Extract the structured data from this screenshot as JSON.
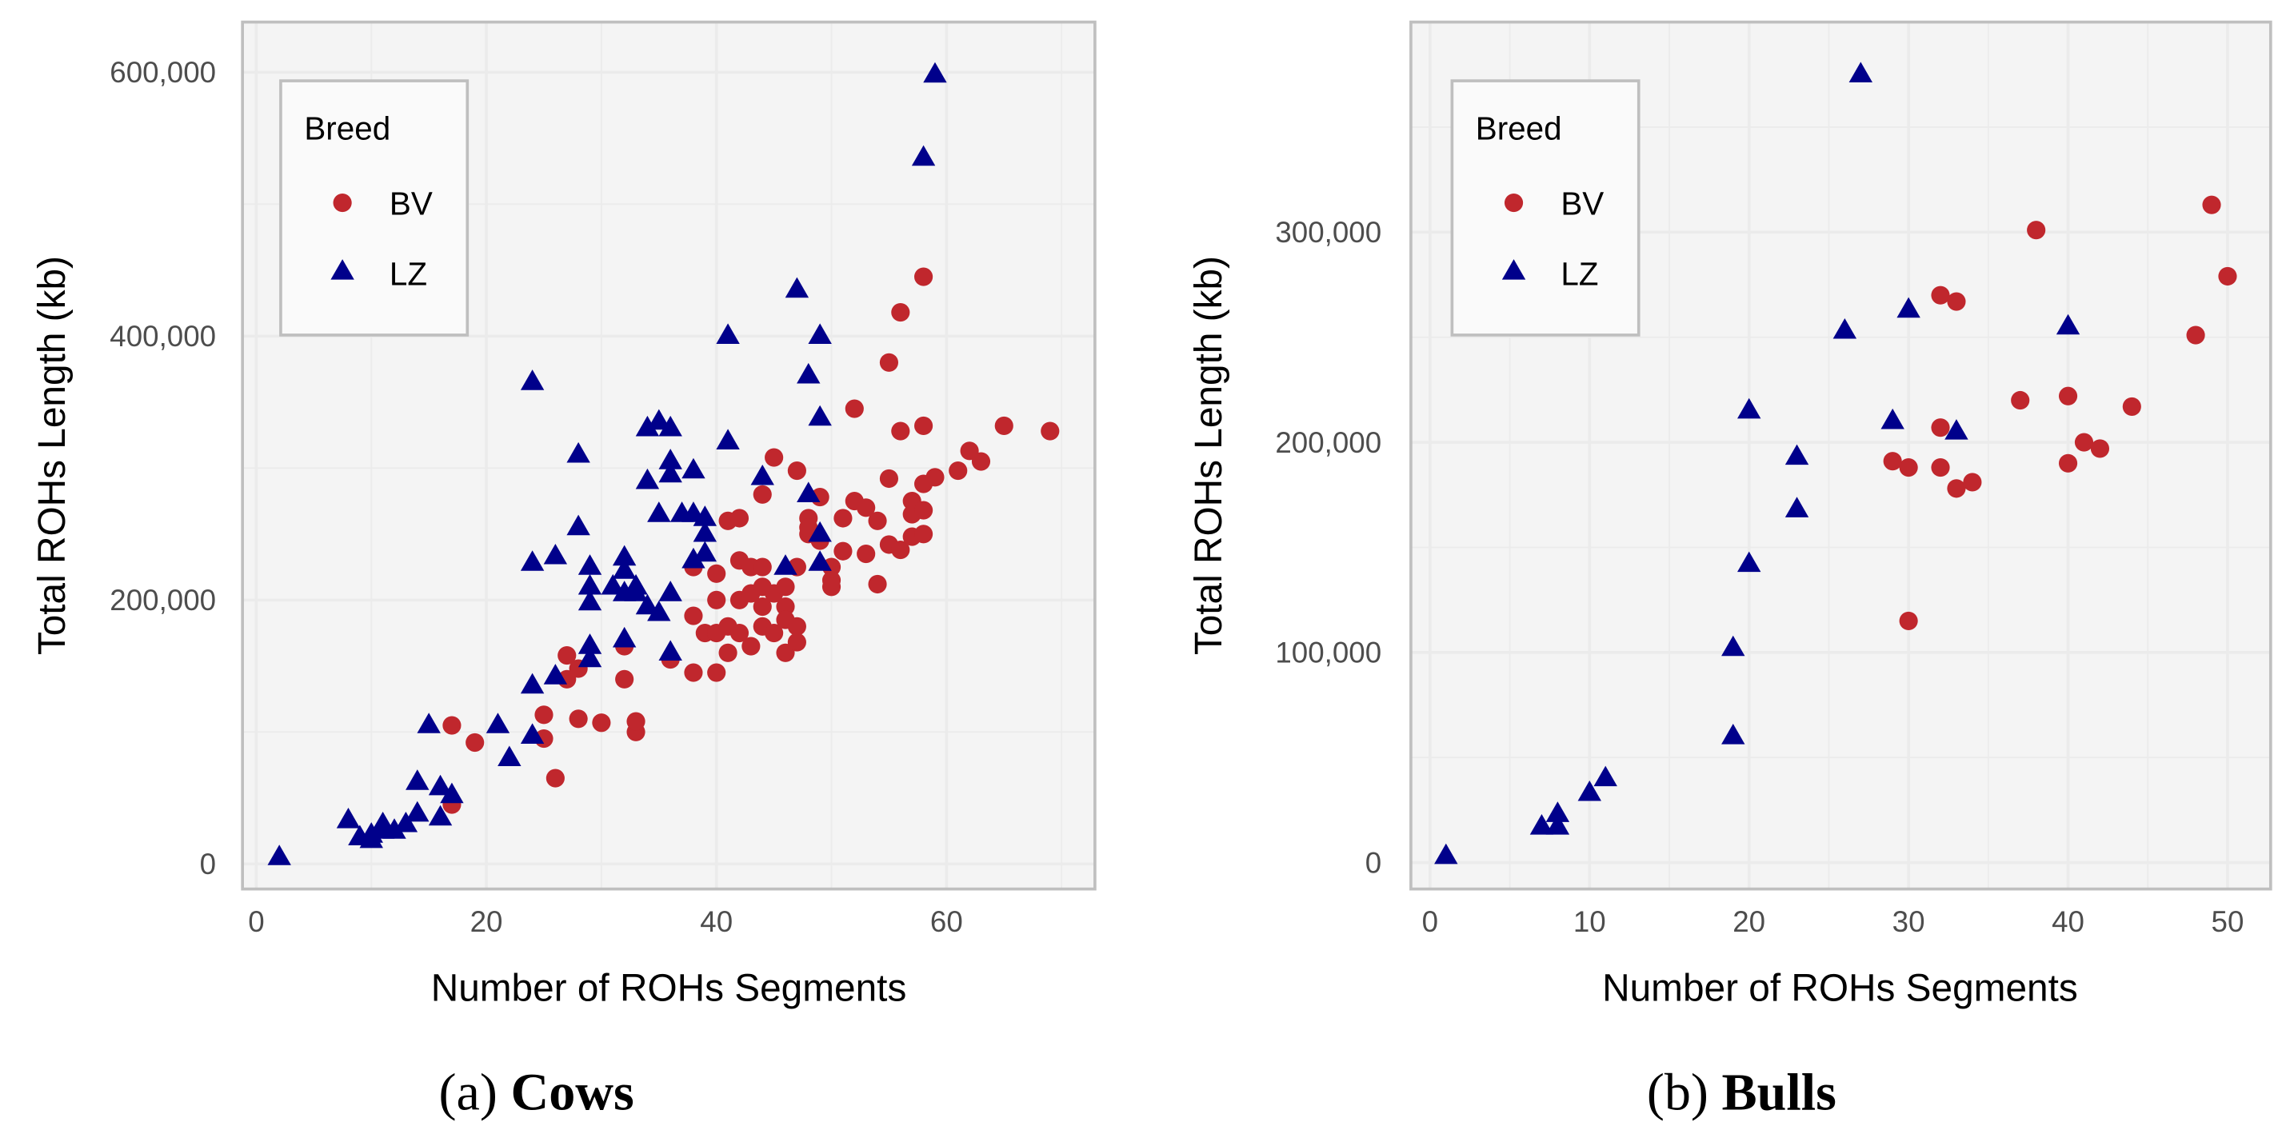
{
  "colors": {
    "BV": "#c0272d",
    "LZ": "#00008b",
    "panel": "#f4f4f4",
    "grid": "#ebebeb",
    "border": "#bfbfbf"
  },
  "chart_data": [
    {
      "type": "scatter",
      "caption_label": "(a)",
      "caption_title": "Cows",
      "xlabel": "Number of ROHs Segments",
      "ylabel": "Total ROHs Length (kb)",
      "xlim": [
        -1.2,
        72.9
      ],
      "ylim": [
        -19000,
        638000
      ],
      "xticks": [
        0,
        20,
        40,
        60
      ],
      "xtick_labels": [
        "0",
        "20",
        "40",
        "60"
      ],
      "yticks": [
        0,
        200000,
        400000,
        600000
      ],
      "ytick_labels": [
        "0",
        "200,000",
        "400,000",
        "600,000"
      ],
      "grid": true,
      "legend": {
        "title": "Breed",
        "placement": "top-left",
        "entries": [
          "BV",
          "LZ"
        ]
      },
      "series": [
        {
          "name": "BV",
          "marker": "circle",
          "points": [
            [
              17,
              45000
            ],
            [
              17,
              105000
            ],
            [
              19,
              92000
            ],
            [
              25,
              113000
            ],
            [
              25,
              95000
            ],
            [
              26,
              65000
            ],
            [
              27,
              140000
            ],
            [
              27,
              158000
            ],
            [
              28,
              148000
            ],
            [
              28,
              110000
            ],
            [
              30,
              107000
            ],
            [
              32,
              140000
            ],
            [
              32,
              165000
            ],
            [
              33,
              100000
            ],
            [
              33,
              108000
            ],
            [
              36,
              155000
            ],
            [
              38,
              225000
            ],
            [
              38,
              188000
            ],
            [
              38,
              145000
            ],
            [
              39,
              175000
            ],
            [
              40,
              220000
            ],
            [
              40,
              200000
            ],
            [
              40,
              175000
            ],
            [
              40,
              145000
            ],
            [
              41,
              180000
            ],
            [
              41,
              160000
            ],
            [
              41,
              260000
            ],
            [
              42,
              230000
            ],
            [
              42,
              262000
            ],
            [
              42,
              200000
            ],
            [
              42,
              175000
            ],
            [
              43,
              225000
            ],
            [
              43,
              205000
            ],
            [
              43,
              165000
            ],
            [
              44,
              280000
            ],
            [
              44,
              225000
            ],
            [
              44,
              210000
            ],
            [
              44,
              195000
            ],
            [
              44,
              180000
            ],
            [
              45,
              308000
            ],
            [
              45,
              205000
            ],
            [
              45,
              175000
            ],
            [
              46,
              210000
            ],
            [
              46,
              195000
            ],
            [
              46,
              185000
            ],
            [
              46,
              160000
            ],
            [
              47,
              298000
            ],
            [
              47,
              225000
            ],
            [
              47,
              180000
            ],
            [
              47,
              168000
            ],
            [
              48,
              262000
            ],
            [
              48,
              250000
            ],
            [
              48,
              255000
            ],
            [
              49,
              278000
            ],
            [
              49,
              245000
            ],
            [
              50,
              225000
            ],
            [
              50,
              215000
            ],
            [
              50,
              210000
            ],
            [
              51,
              262000
            ],
            [
              51,
              237000
            ],
            [
              52,
              345000
            ],
            [
              52,
              275000
            ],
            [
              53,
              270000
            ],
            [
              53,
              235000
            ],
            [
              54,
              260000
            ],
            [
              54,
              212000
            ],
            [
              55,
              380000
            ],
            [
              55,
              292000
            ],
            [
              55,
              242000
            ],
            [
              56,
              418000
            ],
            [
              56,
              328000
            ],
            [
              56,
              238000
            ],
            [
              57,
              275000
            ],
            [
              57,
              265000
            ],
            [
              57,
              248000
            ],
            [
              58,
              445000
            ],
            [
              58,
              332000
            ],
            [
              58,
              288000
            ],
            [
              58,
              268000
            ],
            [
              58,
              250000
            ],
            [
              59,
              293000
            ],
            [
              61,
              298000
            ],
            [
              62,
              313000
            ],
            [
              63,
              305000
            ],
            [
              65,
              332000
            ],
            [
              69,
              328000
            ]
          ]
        },
        {
          "name": "LZ",
          "marker": "triangle",
          "points": [
            [
              2,
              5000
            ],
            [
              8,
              33000
            ],
            [
              9,
              20000
            ],
            [
              10,
              18000
            ],
            [
              10,
              22000
            ],
            [
              11,
              25000
            ],
            [
              11,
              30000
            ],
            [
              12,
              25000
            ],
            [
              13,
              30000
            ],
            [
              14,
              38000
            ],
            [
              14,
              62000
            ],
            [
              15,
              105000
            ],
            [
              16,
              58000
            ],
            [
              16,
              35000
            ],
            [
              17,
              52000
            ],
            [
              21,
              105000
            ],
            [
              22,
              80000
            ],
            [
              24,
              97000
            ],
            [
              24,
              135000
            ],
            [
              24,
              228000
            ],
            [
              24,
              365000
            ],
            [
              26,
              142000
            ],
            [
              26,
              233000
            ],
            [
              28,
              255000
            ],
            [
              28,
              310000
            ],
            [
              29,
              225000
            ],
            [
              29,
              210000
            ],
            [
              29,
              198000
            ],
            [
              29,
              165000
            ],
            [
              29,
              155000
            ],
            [
              31,
              210000
            ],
            [
              32,
              232000
            ],
            [
              32,
              222000
            ],
            [
              32,
              205000
            ],
            [
              32,
              170000
            ],
            [
              33,
              210000
            ],
            [
              33,
              205000
            ],
            [
              34,
              195000
            ],
            [
              34,
              290000
            ],
            [
              34,
              330000
            ],
            [
              35,
              335000
            ],
            [
              35,
              265000
            ],
            [
              35,
              190000
            ],
            [
              36,
              330000
            ],
            [
              36,
              305000
            ],
            [
              36,
              295000
            ],
            [
              36,
              205000
            ],
            [
              36,
              160000
            ],
            [
              37,
              265000
            ],
            [
              38,
              298000
            ],
            [
              38,
              265000
            ],
            [
              38,
              230000
            ],
            [
              39,
              262000
            ],
            [
              39,
              250000
            ],
            [
              39,
              235000
            ],
            [
              41,
              400000
            ],
            [
              41,
              320000
            ],
            [
              44,
              293000
            ],
            [
              46,
              225000
            ],
            [
              47,
              435000
            ],
            [
              48,
              370000
            ],
            [
              48,
              280000
            ],
            [
              49,
              400000
            ],
            [
              49,
              338000
            ],
            [
              49,
              250000
            ],
            [
              49,
              228000
            ],
            [
              58,
              535000
            ],
            [
              59,
              598000
            ]
          ]
        }
      ]
    },
    {
      "type": "scatter",
      "caption_label": "(b)",
      "caption_title": "Bulls",
      "xlabel": "Number of ROHs Segments",
      "ylabel": "Total ROHs Length (kb)",
      "xlim": [
        -1.2,
        52.7
      ],
      "ylim": [
        -12600,
        400000
      ],
      "xticks": [
        0,
        10,
        20,
        30,
        40,
        50
      ],
      "xtick_labels": [
        "0",
        "10",
        "20",
        "30",
        "40",
        "50"
      ],
      "yticks": [
        0,
        100000,
        200000,
        300000
      ],
      "ytick_labels": [
        "0",
        "100,000",
        "200,000",
        "300,000"
      ],
      "grid": true,
      "legend": {
        "title": "Breed",
        "placement": "top-left",
        "entries": [
          "BV",
          "LZ"
        ]
      },
      "series": [
        {
          "name": "BV",
          "marker": "circle",
          "points": [
            [
              29,
              191000
            ],
            [
              30,
              188000
            ],
            [
              30,
              115000
            ],
            [
              32,
              270000
            ],
            [
              32,
              207000
            ],
            [
              32,
              188000
            ],
            [
              33,
              267000
            ],
            [
              33,
              178000
            ],
            [
              34,
              181000
            ],
            [
              37,
              220000
            ],
            [
              38,
              301000
            ],
            [
              40,
              222000
            ],
            [
              40,
              190000
            ],
            [
              41,
              200000
            ],
            [
              42,
              197000
            ],
            [
              44,
              217000
            ],
            [
              48,
              251000
            ],
            [
              49,
              313000
            ],
            [
              50,
              279000
            ]
          ]
        },
        {
          "name": "LZ",
          "marker": "triangle",
          "points": [
            [
              1,
              3000
            ],
            [
              7,
              17000
            ],
            [
              8,
              17000
            ],
            [
              8,
              23000
            ],
            [
              10,
              33000
            ],
            [
              11,
              40000
            ],
            [
              19,
              60000
            ],
            [
              19,
              102000
            ],
            [
              20,
              142000
            ],
            [
              20,
              215000
            ],
            [
              23,
              168000
            ],
            [
              23,
              193000
            ],
            [
              26,
              253000
            ],
            [
              27,
              375000
            ],
            [
              29,
              210000
            ],
            [
              30,
              263000
            ],
            [
              33,
              205000
            ],
            [
              40,
              255000
            ]
          ]
        }
      ]
    }
  ]
}
